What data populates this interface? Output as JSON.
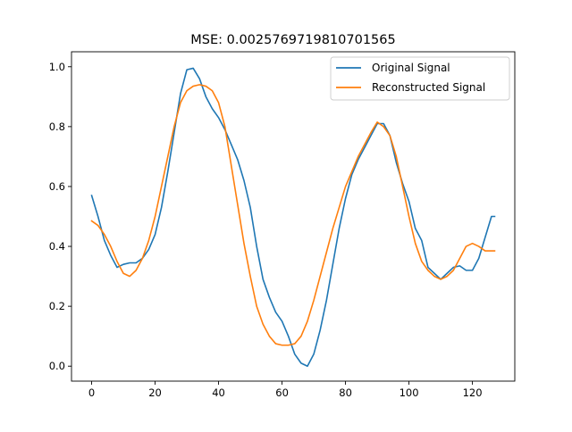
{
  "chart_data": {
    "type": "line",
    "title": "MSE: 0.0025769719810701565",
    "xlabel": "",
    "ylabel": "",
    "xlim": [
      -6.35,
      133.35
    ],
    "ylim": [
      -0.05,
      1.05
    ],
    "x_ticks": [
      0,
      20,
      40,
      60,
      80,
      100,
      120
    ],
    "y_ticks": [
      0.0,
      0.2,
      0.4,
      0.6,
      0.8,
      1.0
    ],
    "x_tick_labels": [
      "0",
      "20",
      "40",
      "60",
      "80",
      "100",
      "120"
    ],
    "y_tick_labels": [
      "0.0",
      "0.2",
      "0.4",
      "0.6",
      "0.8",
      "1.0"
    ],
    "grid": false,
    "legend_position": "top-right",
    "series": [
      {
        "name": "Original Signal",
        "color": "#1f77b4",
        "x": [
          0,
          2,
          4,
          6,
          8,
          10,
          12,
          14,
          16,
          18,
          20,
          22,
          24,
          26,
          28,
          30,
          32,
          34,
          36,
          38,
          40,
          42,
          44,
          46,
          48,
          50,
          52,
          54,
          56,
          58,
          60,
          62,
          64,
          66,
          68,
          70,
          72,
          74,
          76,
          78,
          80,
          82,
          84,
          86,
          88,
          90,
          92,
          94,
          96,
          98,
          100,
          102,
          104,
          106,
          108,
          110,
          112,
          114,
          116,
          118,
          120,
          122,
          124,
          126,
          127
        ],
        "values": [
          0.57,
          0.5,
          0.42,
          0.37,
          0.33,
          0.34,
          0.345,
          0.345,
          0.36,
          0.39,
          0.44,
          0.53,
          0.65,
          0.78,
          0.91,
          0.99,
          0.995,
          0.96,
          0.9,
          0.86,
          0.83,
          0.79,
          0.74,
          0.69,
          0.62,
          0.53,
          0.4,
          0.29,
          0.23,
          0.18,
          0.15,
          0.1,
          0.04,
          0.01,
          0.0,
          0.04,
          0.12,
          0.22,
          0.34,
          0.46,
          0.56,
          0.64,
          0.69,
          0.73,
          0.77,
          0.81,
          0.81,
          0.77,
          0.68,
          0.61,
          0.55,
          0.46,
          0.42,
          0.33,
          0.31,
          0.29,
          0.31,
          0.33,
          0.335,
          0.32,
          0.32,
          0.36,
          0.43,
          0.5,
          0.5
        ]
      },
      {
        "name": "Reconstructed Signal",
        "color": "#ff7f0e",
        "x": [
          0,
          2,
          4,
          6,
          8,
          10,
          12,
          14,
          16,
          18,
          20,
          22,
          24,
          26,
          28,
          30,
          32,
          34,
          36,
          38,
          40,
          42,
          44,
          46,
          48,
          50,
          52,
          54,
          56,
          58,
          60,
          62,
          64,
          66,
          68,
          70,
          72,
          74,
          76,
          78,
          80,
          82,
          84,
          86,
          88,
          90,
          92,
          94,
          96,
          98,
          100,
          102,
          104,
          106,
          108,
          110,
          112,
          114,
          116,
          118,
          120,
          122,
          124,
          126,
          127
        ],
        "values": [
          0.485,
          0.47,
          0.44,
          0.4,
          0.35,
          0.31,
          0.3,
          0.32,
          0.36,
          0.42,
          0.5,
          0.6,
          0.7,
          0.8,
          0.88,
          0.92,
          0.935,
          0.94,
          0.935,
          0.92,
          0.88,
          0.8,
          0.67,
          0.54,
          0.41,
          0.3,
          0.2,
          0.14,
          0.1,
          0.075,
          0.07,
          0.07,
          0.075,
          0.1,
          0.15,
          0.22,
          0.3,
          0.38,
          0.46,
          0.53,
          0.6,
          0.65,
          0.7,
          0.74,
          0.78,
          0.815,
          0.8,
          0.77,
          0.7,
          0.6,
          0.5,
          0.41,
          0.35,
          0.32,
          0.3,
          0.29,
          0.3,
          0.32,
          0.36,
          0.4,
          0.41,
          0.4,
          0.385,
          0.385,
          0.385
        ]
      }
    ]
  }
}
